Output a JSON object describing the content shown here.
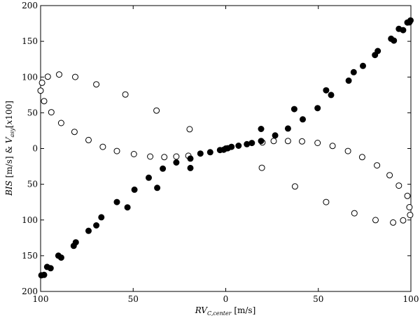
{
  "chart_data": {
    "type": "scatter",
    "title": "",
    "xlabel": {
      "italic": "RV",
      "sub": "C,center",
      "rest": " [m/s]"
    },
    "ylabel": {
      "a": "BIS",
      "b": " [m/s] & ",
      "c": "V",
      "csub": "asy",
      "d": "[",
      "e": "x",
      "f": "100]"
    },
    "xlim": [
      -100,
      100
    ],
    "ylim": [
      -200,
      200
    ],
    "xtick_values": [
      -100,
      -50,
      0,
      50,
      100
    ],
    "xtick_labels": [
      "100",
      "50",
      "0",
      "50",
      "100"
    ],
    "ytick_values": [
      -200,
      -150,
      -100,
      -50,
      0,
      50,
      100,
      150,
      200
    ],
    "ytick_labels": [
      "200",
      "150",
      "100",
      "50",
      "0",
      "50",
      "100",
      "150",
      "200"
    ],
    "grid": false,
    "legend": "none",
    "series": [
      {
        "marker": "filled-circle",
        "color": "#000000",
        "points": [
          [
            -99.6,
            -177.4
          ],
          [
            -98.1,
            -176.8
          ],
          [
            -96.5,
            -165.7
          ],
          [
            -94.6,
            -167.5
          ],
          [
            -90.4,
            -149.9
          ],
          [
            -88.9,
            -152.7
          ],
          [
            -82.1,
            -136.2
          ],
          [
            -81.0,
            -131.2
          ],
          [
            -74.1,
            -115.2
          ],
          [
            -69.9,
            -107.6
          ],
          [
            -67.2,
            -96.2
          ],
          [
            -58.8,
            -74.9
          ],
          [
            -53.1,
            -82.3
          ],
          [
            -49.3,
            -57.6
          ],
          [
            -41.6,
            -40.9
          ],
          [
            -37.0,
            -55.1
          ],
          [
            -34.0,
            -28.2
          ],
          [
            -26.7,
            -19.6
          ],
          [
            -19.1,
            -14.1
          ],
          [
            -19.1,
            -27.3
          ],
          [
            -13.7,
            -7.0
          ],
          [
            -8.4,
            -5.2
          ],
          [
            -3.1,
            -2.2
          ],
          [
            -1.1,
            -1.7
          ],
          [
            0.0,
            0.0
          ],
          [
            1.1,
            0.4
          ],
          [
            3.1,
            2.3
          ],
          [
            6.9,
            3.9
          ],
          [
            11.4,
            6.1
          ],
          [
            14.1,
            7.7
          ],
          [
            19.1,
            10.6
          ],
          [
            19.1,
            27.4
          ],
          [
            26.7,
            18.3
          ],
          [
            33.6,
            28.0
          ],
          [
            37.0,
            55.2
          ],
          [
            41.6,
            40.8
          ],
          [
            49.6,
            56.5
          ],
          [
            54.2,
            81.5
          ],
          [
            56.9,
            74.9
          ],
          [
            66.4,
            95.0
          ],
          [
            69.1,
            106.8
          ],
          [
            74.1,
            115.6
          ],
          [
            80.6,
            130.9
          ],
          [
            82.1,
            136.4
          ],
          [
            89.3,
            153.6
          ],
          [
            90.8,
            151.0
          ],
          [
            93.5,
            167.4
          ],
          [
            95.8,
            165.7
          ],
          [
            98.1,
            176.3
          ],
          [
            99.2,
            176.5
          ],
          [
            99.8,
            179.3
          ]
        ]
      },
      {
        "marker": "open-circle",
        "color": "#000000",
        "points": [
          [
            -100.0,
            81.0
          ],
          [
            -99.2,
            92.0
          ],
          [
            -98.1,
            66.3
          ],
          [
            -96.1,
            100.5
          ],
          [
            -94.2,
            50.8
          ],
          [
            -90.0,
            103.6
          ],
          [
            -88.9,
            35.7
          ],
          [
            -81.3,
            100.1
          ],
          [
            -81.7,
            23.3
          ],
          [
            -74.1,
            11.8
          ],
          [
            -69.9,
            89.8
          ],
          [
            -66.4,
            2.3
          ],
          [
            -58.8,
            -3.5
          ],
          [
            -54.2,
            75.6
          ],
          [
            -49.6,
            -7.8
          ],
          [
            -40.8,
            -11.2
          ],
          [
            -37.4,
            53.1
          ],
          [
            -33.2,
            -12.0
          ],
          [
            -26.7,
            -11.2
          ],
          [
            -20.2,
            -10.2
          ],
          [
            -19.5,
            27.0
          ],
          [
            19.5,
            -27.0
          ],
          [
            19.8,
            8.5
          ],
          [
            25.9,
            10.5
          ],
          [
            33.6,
            10.5
          ],
          [
            37.4,
            -53.1
          ],
          [
            41.2,
            10.0
          ],
          [
            49.6,
            7.8
          ],
          [
            54.2,
            -74.9
          ],
          [
            57.7,
            3.6
          ],
          [
            66.0,
            -3.5
          ],
          [
            69.5,
            -90.6
          ],
          [
            73.7,
            -12.0
          ],
          [
            80.9,
            -100.1
          ],
          [
            81.7,
            -23.6
          ],
          [
            88.5,
            -37.4
          ],
          [
            90.4,
            -103.6
          ],
          [
            93.5,
            -51.9
          ],
          [
            95.8,
            -100.5
          ],
          [
            98.1,
            -66.3
          ],
          [
            99.2,
            -82.2
          ],
          [
            99.6,
            -93.0
          ]
        ]
      }
    ]
  }
}
